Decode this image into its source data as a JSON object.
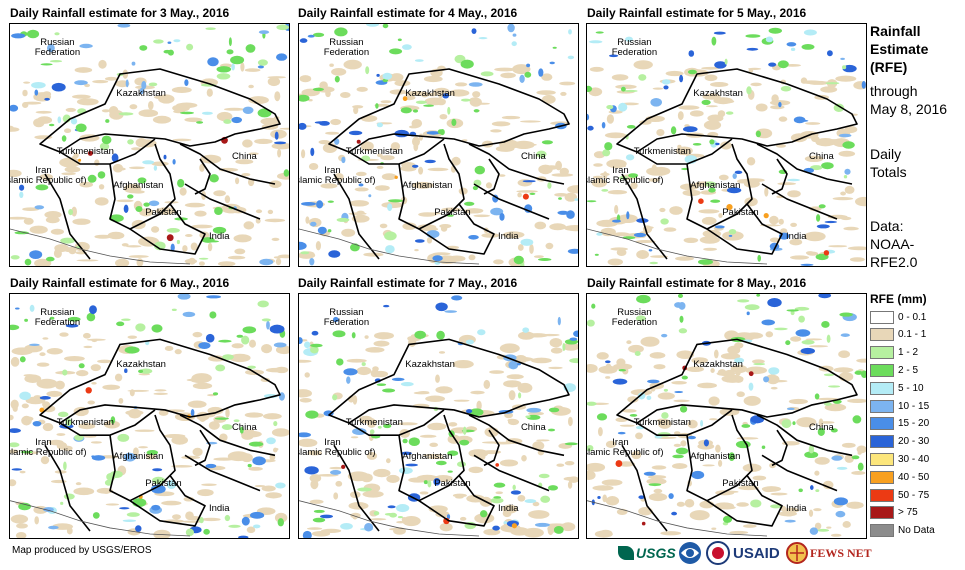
{
  "panels": [
    {
      "title": "Daily Rainfall estimate for 3 May., 2016",
      "labels": [
        "Russian\nFederation",
        "Kazakhstan",
        "Turkmenistan",
        "Iran\n(Islamic Republic of)",
        "Afghanistan",
        "Pakistan",
        "China",
        "India"
      ]
    },
    {
      "title": "Daily Rainfall estimate for 4 May., 2016",
      "labels": [
        "Russian\nFederation",
        "Kazakhstan",
        "Turkmenistan",
        "Iran\n(Islamic Republic of)",
        "Afghanistan",
        "Pakistan",
        "China",
        "India"
      ]
    },
    {
      "title": "Daily Rainfall estimate for 5 May., 2016",
      "labels": [
        "Russian\nFederation",
        "Kazakhstan",
        "Turkmenistan",
        "Iran\n(Islamic Republic of)",
        "Afghanistan",
        "Pakistan",
        "China",
        "India"
      ]
    },
    {
      "title": "Daily Rainfall estimate for 6 May., 2016",
      "labels": [
        "Russian\nFederation",
        "Kazakhstan",
        "Turkmenistan",
        "Iran\n(Islamic Republic of)",
        "Afghanistan",
        "Pakistan",
        "China",
        "India"
      ]
    },
    {
      "title": "Daily Rainfall estimate for 7 May., 2016",
      "labels": [
        "Russian\nFederation",
        "Kazakhstan",
        "Turkmenistan",
        "Iran\n(Islamic Republic of)",
        "Afghanistan",
        "Pakistan",
        "China",
        "India"
      ]
    },
    {
      "title": "Daily Rainfall estimate for 8 May., 2016",
      "labels": [
        "Russian\nFederation",
        "Kazakhstan",
        "Turkmenistan",
        "Iran\n(Islamic Republic of)",
        "Afghanistan",
        "Pakistan",
        "China",
        "India"
      ]
    }
  ],
  "sidebar": {
    "heading": [
      "Rainfall",
      "Estimate",
      "(RFE)"
    ],
    "through": [
      "through",
      "May 8, 2016"
    ],
    "totals": [
      "Daily",
      "Totals"
    ],
    "data": [
      "Data:",
      "NOAA-",
      "RFE2.0"
    ]
  },
  "legend": {
    "title": "RFE (mm)",
    "items": [
      {
        "label": "0 - 0.1",
        "color": "#ffffff"
      },
      {
        "label": "0.1 - 1",
        "color": "#e8d7b8"
      },
      {
        "label": "1 - 2",
        "color": "#b6f0a0"
      },
      {
        "label": "2 - 5",
        "color": "#6cdc5c"
      },
      {
        "label": "5 - 10",
        "color": "#b4ecf6"
      },
      {
        "label": "10 - 15",
        "color": "#7cb4f0"
      },
      {
        "label": "15 - 20",
        "color": "#4a8ee8"
      },
      {
        "label": "20 - 30",
        "color": "#2a64d8"
      },
      {
        "label": "30 - 40",
        "color": "#fce67c"
      },
      {
        "label": "40 - 50",
        "color": "#f8a020"
      },
      {
        "label": "50 - 75",
        "color": "#ec3a14"
      },
      {
        "label": "> 75",
        "color": "#a81818"
      },
      {
        "label": "No Data",
        "color": "#8c8c8c"
      }
    ]
  },
  "credit": "Map produced by USGS/EROS",
  "logos": {
    "usgs": "USGS",
    "usaid": "USAID",
    "fewsnet": "FEWS NET"
  }
}
